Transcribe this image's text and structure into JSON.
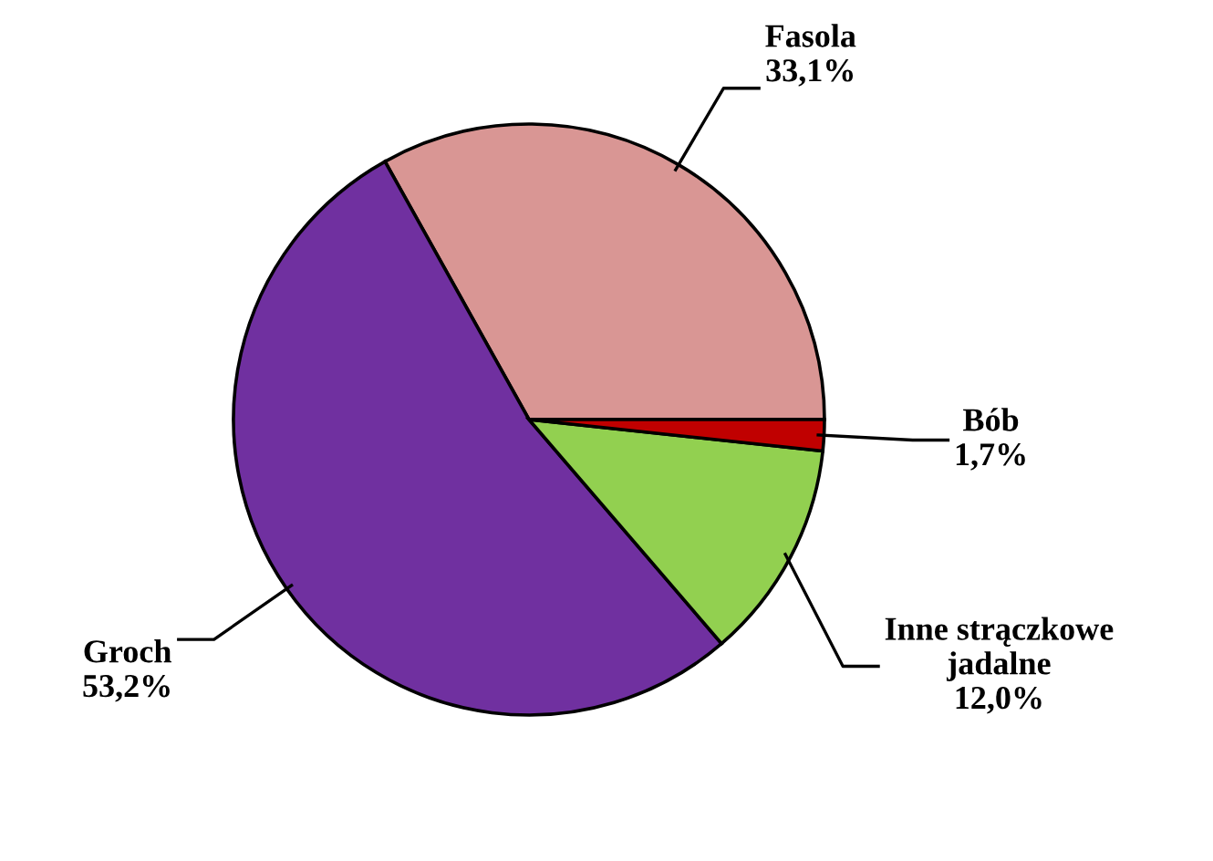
{
  "chart_data": {
    "type": "pie",
    "categories": [
      "Fasola",
      "Groch",
      "Inne strączkowe jadalne",
      "Bób"
    ],
    "values": [
      33.1,
      53.2,
      12.0,
      1.7
    ],
    "value_labels": [
      "33,1%",
      "53,2%",
      "12,0%",
      "1,7%"
    ],
    "colors": [
      "#d99694",
      "#7030a0",
      "#92d050",
      "#c00000"
    ],
    "legend": false
  }
}
